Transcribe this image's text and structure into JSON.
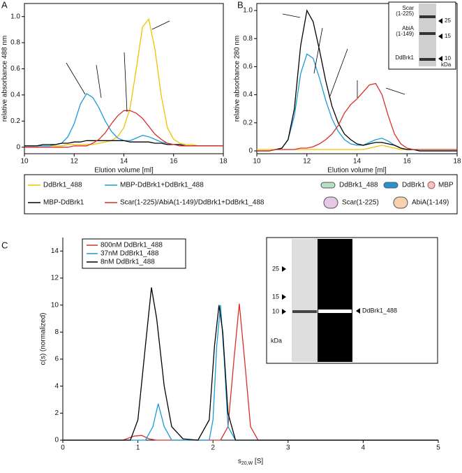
{
  "panel_labels": [
    "A",
    "B",
    "C"
  ],
  "chart_data": [
    {
      "type": "line",
      "ylabel": "relative absorbance 488 nm",
      "xlabel": "Elution volume [ml]",
      "xlim": [
        10,
        18
      ],
      "xticks": [
        10,
        12,
        14,
        16,
        18
      ],
      "ylim": [
        -0.05,
        1.1
      ],
      "yticks": [
        0,
        0.2,
        0.4,
        0.6,
        0.8,
        {
          "value": 1,
          "label": "1.0"
        }
      ],
      "x": [
        10,
        10.25,
        10.5,
        10.75,
        11,
        11.25,
        11.5,
        11.75,
        12,
        12.25,
        12.5,
        12.75,
        13,
        13.25,
        13.5,
        13.75,
        14,
        14.25,
        14.5,
        14.75,
        15,
        15.25,
        15.5,
        15.75,
        16,
        16.25,
        16.5,
        16.75,
        17,
        17.25,
        17.5,
        17.75,
        18
      ],
      "series": [
        {
          "name": "DdBrk1_488",
          "color": "#f2c200",
          "values": [
            0.01,
            0.01,
            0.01,
            0.01,
            0.01,
            0.01,
            0.01,
            0.02,
            0.02,
            0.02,
            0.02,
            0.02,
            0.03,
            0.04,
            0.05,
            0.08,
            0.15,
            0.3,
            0.6,
            0.92,
            0.98,
            0.75,
            0.4,
            0.15,
            0.06,
            0.03,
            0.02,
            0.02,
            0.01,
            0.01,
            0.01,
            0.01,
            0.01
          ]
        },
        {
          "name": "MBP-DdBrk1+DdBrk1_488",
          "color": "#1a9bd7",
          "values": [
            0.01,
            0.01,
            0.01,
            0.01,
            0.01,
            0.02,
            0.03,
            0.08,
            0.18,
            0.33,
            0.41,
            0.38,
            0.3,
            0.2,
            0.12,
            0.07,
            0.05,
            0.05,
            0.07,
            0.09,
            0.08,
            0.06,
            0.04,
            0.03,
            0.02,
            0.02,
            0.01,
            0.01,
            0.01,
            0.01,
            0.01,
            0.01,
            0.01
          ]
        },
        {
          "name": "MBP-DdBrk1",
          "color": "#000000",
          "values": [
            0.01,
            0.01,
            0.01,
            0.02,
            0.02,
            0.02,
            0.03,
            0.03,
            0.04,
            0.04,
            0.05,
            0.05,
            0.05,
            0.05,
            0.05,
            0.05,
            0.05,
            0.04,
            0.04,
            0.04,
            0.04,
            0.03,
            0.03,
            0.02,
            0.02,
            0.02,
            0.01,
            0.01,
            0.01,
            0.01,
            0.01,
            0.01,
            0.01
          ]
        },
        {
          "name": "Scar(1-225)/AbiA(1-149)/DdBrk1+DdBrk1_488",
          "color": "#d7302a",
          "values": [
            0,
            0,
            0,
            0,
            0,
            0,
            0,
            0,
            0.01,
            0.01,
            0.01,
            0.03,
            0.06,
            0.11,
            0.18,
            0.24,
            0.28,
            0.28,
            0.26,
            0.22,
            0.16,
            0.1,
            0.06,
            0.03,
            0.02,
            0.01,
            0.01,
            0.01,
            0.01,
            0.01,
            0.01,
            0.01,
            0.01
          ]
        }
      ]
    },
    {
      "type": "line",
      "ylabel": "relative absorbance 280 nm",
      "xlabel": "Elution volume [ml]",
      "xlim": [
        10,
        18
      ],
      "xticks": [
        10,
        12,
        14,
        16,
        18
      ],
      "ylim": [
        -0.02,
        1.05
      ],
      "yticks": [
        0,
        0.2,
        0.4,
        0.6,
        0.8,
        {
          "value": 1,
          "label": "1.0"
        }
      ],
      "x": [
        10,
        10.25,
        10.5,
        10.75,
        11,
        11.25,
        11.5,
        11.75,
        12,
        12.25,
        12.5,
        12.75,
        13,
        13.25,
        13.5,
        13.75,
        14,
        14.25,
        14.5,
        14.75,
        15,
        15.25,
        15.5,
        15.75,
        16,
        16.25,
        16.5,
        16.75,
        17,
        17.25,
        17.5,
        17.75,
        18
      ],
      "series": [
        {
          "color": "#f2c200",
          "values": [
            0.01,
            0.01,
            0.01,
            0.01,
            0.01,
            0.01,
            0.01,
            0.01,
            0.01,
            0.01,
            0.01,
            0.01,
            0.01,
            0.01,
            0.01,
            0.01,
            0.01,
            0.01,
            0.02,
            0.03,
            0.04,
            0.03,
            0.02,
            0.01,
            0.01,
            0.01,
            0,
            0,
            0,
            0,
            0,
            0,
            0
          ]
        },
        {
          "color": "#1a9bd7",
          "values": [
            0,
            0,
            0,
            0.01,
            0.02,
            0.08,
            0.25,
            0.55,
            0.69,
            0.66,
            0.52,
            0.36,
            0.23,
            0.14,
            0.08,
            0.05,
            0.04,
            0.04,
            0.06,
            0.08,
            0.09,
            0.07,
            0.04,
            0.02,
            0.01,
            0.01,
            0,
            0,
            0,
            0,
            0,
            0,
            0
          ]
        },
        {
          "color": "#000000",
          "values": [
            0,
            0,
            0,
            0.01,
            0.02,
            0.08,
            0.3,
            0.75,
            1.0,
            0.92,
            0.72,
            0.5,
            0.32,
            0.2,
            0.12,
            0.08,
            0.05,
            0.04,
            0.05,
            0.06,
            0.06,
            0.05,
            0.04,
            0.02,
            0.01,
            0.01,
            0,
            0,
            0,
            0,
            0,
            0,
            0
          ]
        },
        {
          "color": "#d7302a",
          "values": [
            0,
            0,
            0,
            0.01,
            0.01,
            0.01,
            0.01,
            0.02,
            0.02,
            0.03,
            0.05,
            0.08,
            0.12,
            0.18,
            0.27,
            0.33,
            0.37,
            0.42,
            0.47,
            0.48,
            0.4,
            0.25,
            0.12,
            0.05,
            0.02,
            0.01,
            0.01,
            0.01,
            0.01,
            0.01,
            0.01,
            0.01,
            0.01
          ]
        }
      ]
    },
    {
      "type": "line",
      "ylabel": "c(s) (normalized)",
      "xlabel": [
        "s",
        "20,W",
        " [S]"
      ],
      "xlim": [
        0,
        5
      ],
      "xticks": [
        0,
        1,
        2,
        3,
        4,
        5
      ],
      "ylim": [
        0,
        15
      ],
      "yticks": [
        0,
        2,
        4,
        6,
        8,
        10,
        12,
        14
      ],
      "series": [
        {
          "name": "800nM DdBrk1_488",
          "color": "#d7302a",
          "x": [
            0,
            0.8,
            0.95,
            1.05,
            1.15,
            1.25,
            2.1,
            2.2,
            2.28,
            2.35,
            2.42,
            2.5,
            2.6,
            5
          ],
          "values": [
            0,
            0,
            0.3,
            0.35,
            0.1,
            0,
            0,
            1,
            6,
            10.1,
            6,
            1,
            0,
            0
          ]
        },
        {
          "name": "37nM DdBrk1_488",
          "color": "#1a9bd7",
          "x": [
            0,
            1.1,
            1.2,
            1.27,
            1.35,
            1.45,
            1.95,
            2.0,
            2.05,
            2.1,
            2.15,
            2.2,
            2.3,
            5
          ],
          "values": [
            0,
            0,
            1,
            2.7,
            1,
            0,
            0,
            1.5,
            7,
            10,
            6,
            1,
            0,
            0
          ]
        },
        {
          "name": "8nM DdBrk1_488",
          "color": "#000000",
          "x": [
            0,
            0.9,
            1.0,
            1.1,
            1.18,
            1.25,
            1.35,
            1.45,
            1.6,
            1.8,
            1.95,
            2.02,
            2.08,
            2.13,
            2.2,
            2.3,
            5
          ],
          "values": [
            0,
            0,
            1.5,
            7,
            11.3,
            9,
            4,
            1,
            0.1,
            0,
            1.5,
            7,
            10,
            8,
            2,
            0,
            0
          ]
        }
      ]
    }
  ],
  "icon_legend": [
    "DdBrk1_488",
    "DdBrk1",
    "MBP",
    "Scar(1-225)",
    "AbiA(1-149)"
  ],
  "gel_b": {
    "left_labels": [
      "Scar",
      "(1-225)",
      "AbiA",
      "(1-149)",
      "DdBrk1"
    ],
    "right_labels": [
      "25",
      "15",
      "10"
    ],
    "unit": "kDa"
  },
  "gel_c": {
    "left_labels": [
      "25",
      "15",
      "10"
    ],
    "unit": "kDa",
    "band_label": "DdBrk1_488"
  }
}
